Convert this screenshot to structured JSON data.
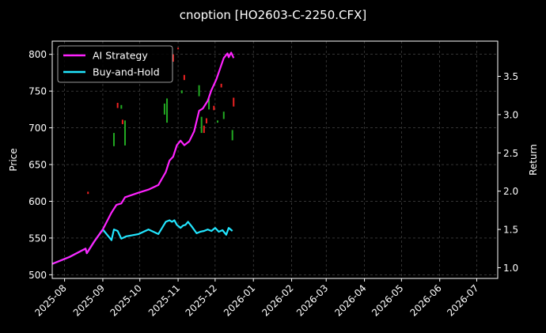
{
  "chart_data": {
    "type": "line",
    "title": "cnoption [HO2603-C-2250.CFX]",
    "xlabel": "",
    "ylabel_left": "Price",
    "ylabel_right": "Return",
    "x_axis": {
      "min": "2025-07-22",
      "max": "2026-07-18",
      "ticks": [
        "2025-08-01",
        "2025-09-01",
        "2025-10-01",
        "2025-11-01",
        "2025-12-01",
        "2026-01-01",
        "2026-02-01",
        "2026-03-01",
        "2026-04-01",
        "2026-05-01",
        "2026-06-01",
        "2026-07-01"
      ],
      "tick_labels": [
        "2025-08",
        "2025-09",
        "2025-10",
        "2025-11",
        "2025-12",
        "2026-01",
        "2026-02",
        "2026-03",
        "2026-04",
        "2026-05",
        "2026-06",
        "2026-07"
      ]
    },
    "y_left": {
      "min": 495,
      "max": 818,
      "ticks": [
        500,
        550,
        600,
        650,
        700,
        750,
        800
      ]
    },
    "y_right": {
      "min": 0.86,
      "max": 3.96,
      "ticks": [
        1.0,
        1.5,
        2.0,
        2.5,
        3.0,
        3.5
      ]
    },
    "grid": true,
    "legend_position": "top-left",
    "colors": {
      "ai": "#ff22ff",
      "bh": "#22e6ff",
      "up": "#22aa22",
      "down": "#ee2222",
      "background": "#000000",
      "grid": "#555555"
    },
    "series": [
      {
        "name": "AI Strategy",
        "axis": "right",
        "color": "#ff22ff",
        "points": [
          [
            "2025-07-22",
            1.05
          ],
          [
            "2025-08-05",
            1.14
          ],
          [
            "2025-08-18",
            1.25
          ],
          [
            "2025-08-19",
            1.19
          ],
          [
            "2025-08-25",
            1.34
          ],
          [
            "2025-09-01",
            1.5
          ],
          [
            "2025-09-08",
            1.72
          ],
          [
            "2025-09-12",
            1.82
          ],
          [
            "2025-09-16",
            1.84
          ],
          [
            "2025-09-19",
            1.92
          ],
          [
            "2025-09-30",
            1.98
          ],
          [
            "2025-10-08",
            2.02
          ],
          [
            "2025-10-16",
            2.08
          ],
          [
            "2025-10-22",
            2.25
          ],
          [
            "2025-10-25",
            2.4
          ],
          [
            "2025-10-28",
            2.45
          ],
          [
            "2025-10-31",
            2.6
          ],
          [
            "2025-11-03",
            2.66
          ],
          [
            "2025-11-06",
            2.6
          ],
          [
            "2025-11-10",
            2.65
          ],
          [
            "2025-11-14",
            2.78
          ],
          [
            "2025-11-18",
            3.05
          ],
          [
            "2025-11-21",
            3.08
          ],
          [
            "2025-11-25",
            3.18
          ],
          [
            "2025-11-28",
            3.32
          ],
          [
            "2025-12-02",
            3.46
          ],
          [
            "2025-12-05",
            3.6
          ],
          [
            "2025-12-08",
            3.74
          ],
          [
            "2025-12-11",
            3.8
          ],
          [
            "2025-12-12",
            3.75
          ],
          [
            "2025-12-14",
            3.81
          ],
          [
            "2025-12-16",
            3.74
          ]
        ]
      },
      {
        "name": "Buy-and-Hold",
        "axis": "right",
        "color": "#22e6ff",
        "points": [
          [
            "2025-07-22",
            1.05
          ],
          [
            "2025-08-05",
            1.14
          ],
          [
            "2025-08-18",
            1.25
          ],
          [
            "2025-08-19",
            1.19
          ],
          [
            "2025-08-25",
            1.34
          ],
          [
            "2025-09-01",
            1.5
          ],
          [
            "2025-09-05",
            1.42
          ],
          [
            "2025-09-08",
            1.36
          ],
          [
            "2025-09-10",
            1.5
          ],
          [
            "2025-09-13",
            1.48
          ],
          [
            "2025-09-16",
            1.38
          ],
          [
            "2025-09-20",
            1.41
          ],
          [
            "2025-09-30",
            1.44
          ],
          [
            "2025-10-08",
            1.5
          ],
          [
            "2025-10-16",
            1.44
          ],
          [
            "2025-10-22",
            1.6
          ],
          [
            "2025-10-25",
            1.62
          ],
          [
            "2025-10-27",
            1.6
          ],
          [
            "2025-10-29",
            1.62
          ],
          [
            "2025-10-31",
            1.56
          ],
          [
            "2025-11-03",
            1.52
          ],
          [
            "2025-11-05",
            1.55
          ],
          [
            "2025-11-07",
            1.56
          ],
          [
            "2025-11-09",
            1.6
          ],
          [
            "2025-11-12",
            1.54
          ],
          [
            "2025-11-16",
            1.45
          ],
          [
            "2025-11-19",
            1.47
          ],
          [
            "2025-11-22",
            1.48
          ],
          [
            "2025-11-25",
            1.5
          ],
          [
            "2025-11-28",
            1.48
          ],
          [
            "2025-12-01",
            1.52
          ],
          [
            "2025-12-04",
            1.47
          ],
          [
            "2025-12-07",
            1.49
          ],
          [
            "2025-12-10",
            1.43
          ],
          [
            "2025-12-12",
            1.52
          ],
          [
            "2025-12-15",
            1.48
          ]
        ]
      }
    ],
    "candles": [
      {
        "date": "2025-08-20",
        "low": 610,
        "high": 613,
        "direction": "down"
      },
      {
        "date": "2025-09-10",
        "low": 675,
        "high": 693,
        "direction": "up"
      },
      {
        "date": "2025-09-13",
        "low": 727,
        "high": 734,
        "direction": "down"
      },
      {
        "date": "2025-09-16",
        "low": 726,
        "high": 731,
        "direction": "up"
      },
      {
        "date": "2025-09-17",
        "low": 705,
        "high": 711,
        "direction": "down"
      },
      {
        "date": "2025-09-19",
        "low": 676,
        "high": 710,
        "direction": "up"
      },
      {
        "date": "2025-10-21",
        "low": 718,
        "high": 733,
        "direction": "up"
      },
      {
        "date": "2025-10-23",
        "low": 707,
        "high": 740,
        "direction": "up"
      },
      {
        "date": "2025-10-28",
        "low": 790,
        "high": 800,
        "direction": "down"
      },
      {
        "date": "2025-11-01",
        "low": 807,
        "high": 809,
        "direction": "down"
      },
      {
        "date": "2025-11-04",
        "low": 747,
        "high": 751,
        "direction": "up"
      },
      {
        "date": "2025-11-06",
        "low": 765,
        "high": 772,
        "direction": "down"
      },
      {
        "date": "2025-11-18",
        "low": 743,
        "high": 758,
        "direction": "up"
      },
      {
        "date": "2025-11-20",
        "low": 693,
        "high": 715,
        "direction": "up"
      },
      {
        "date": "2025-11-22",
        "low": 693,
        "high": 703,
        "direction": "down"
      },
      {
        "date": "2025-11-24",
        "low": 706,
        "high": 713,
        "direction": "down"
      },
      {
        "date": "2025-11-26",
        "low": 725,
        "high": 740,
        "direction": "up"
      },
      {
        "date": "2025-11-30",
        "low": 724,
        "high": 730,
        "direction": "down"
      },
      {
        "date": "2025-12-03",
        "low": 707,
        "high": 710,
        "direction": "up"
      },
      {
        "date": "2025-12-06",
        "low": 755,
        "high": 760,
        "direction": "down"
      },
      {
        "date": "2025-12-08",
        "low": 712,
        "high": 722,
        "direction": "up"
      },
      {
        "date": "2025-12-15",
        "low": 683,
        "high": 697,
        "direction": "up"
      },
      {
        "date": "2025-12-16",
        "low": 729,
        "high": 741,
        "direction": "down"
      }
    ]
  }
}
